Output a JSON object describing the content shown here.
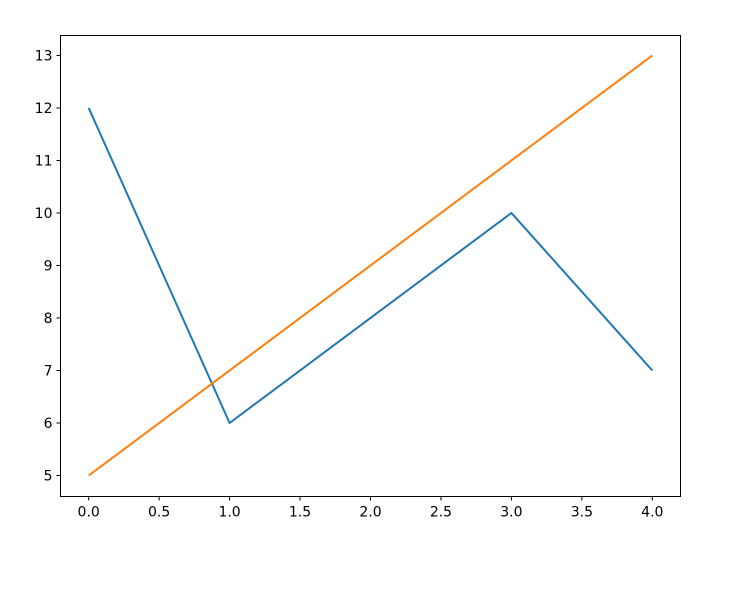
{
  "chart_data": {
    "type": "line",
    "title": "",
    "xlabel": "",
    "ylabel": "",
    "xlim": [
      -0.2,
      4.2
    ],
    "ylim": [
      4.6,
      13.38
    ],
    "grid": false,
    "x": [
      0,
      1,
      2,
      3,
      4
    ],
    "xticks": [
      "0.0",
      "0.5",
      "1.0",
      "1.5",
      "2.0",
      "2.5",
      "3.0",
      "3.5",
      "4.0"
    ],
    "yticks": [
      "5",
      "6",
      "7",
      "8",
      "9",
      "10",
      "11",
      "12",
      "13"
    ],
    "series": [
      {
        "values": [
          12,
          6,
          8,
          10,
          7
        ],
        "color": "#1f77b4"
      },
      {
        "values": [
          5,
          7,
          9,
          11,
          13
        ],
        "color": "#ff7f0e"
      }
    ]
  }
}
